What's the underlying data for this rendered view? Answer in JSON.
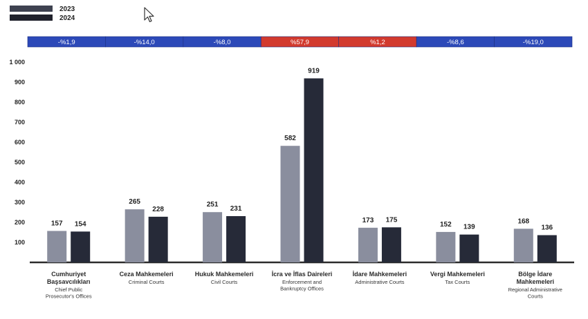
{
  "legend": [
    {
      "label": "2023",
      "color": "#3e4250"
    },
    {
      "label": "2024",
      "color": "#20222c"
    }
  ],
  "colors": {
    "bar_2023": "#8a8e9e",
    "bar_2024": "#262a38",
    "change_decrease": "#2c49b8",
    "change_increase": "#d23a2e",
    "axis_line": "#2b2b2b"
  },
  "cursor_icon": "mouse-pointer-icon",
  "chart_data": {
    "type": "bar",
    "ylim": [
      0,
      1000
    ],
    "yticks": [
      "1 000",
      "900",
      "800",
      "700",
      "600",
      "500",
      "400",
      "300",
      "200",
      "100"
    ],
    "ytick_values": [
      1000,
      900,
      800,
      700,
      600,
      500,
      400,
      300,
      200,
      100
    ],
    "grid": false,
    "categories": [
      {
        "tr": [
          "Cumhuriyet",
          "Başsavcılıkları"
        ],
        "en": [
          "Chief Public",
          "Prosecutor's Offices"
        ]
      },
      {
        "tr": [
          "Ceza Mahkemeleri"
        ],
        "en": [
          "Criminal Courts"
        ]
      },
      {
        "tr": [
          "Hukuk Mahkemeleri"
        ],
        "en": [
          "Civil Courts"
        ]
      },
      {
        "tr": [
          "İcra ve İflas Daireleri"
        ],
        "en": [
          "Enforcement and",
          "Bankruptcy Offices"
        ]
      },
      {
        "tr": [
          "İdare Mahkemeleri"
        ],
        "en": [
          "Administrative Courts"
        ]
      },
      {
        "tr": [
          "Vergi Mahkemeleri"
        ],
        "en": [
          "Tax Courts"
        ]
      },
      {
        "tr": [
          "Bölge İdare",
          "Mahkemeleri"
        ],
        "en": [
          "Regional Administrative",
          "Courts"
        ]
      }
    ],
    "series": [
      {
        "name": "2023",
        "values": [
          157,
          265,
          251,
          582,
          173,
          152,
          168
        ]
      },
      {
        "name": "2024",
        "values": [
          154,
          228,
          231,
          919,
          175,
          139,
          136
        ]
      }
    ],
    "change": [
      {
        "label": "-%1,9",
        "direction": "decrease"
      },
      {
        "label": "-%14,0",
        "direction": "decrease"
      },
      {
        "label": "-%8,0",
        "direction": "decrease"
      },
      {
        "label": "%57,9",
        "direction": "increase"
      },
      {
        "label": "%1,2",
        "direction": "increase"
      },
      {
        "label": "-%8,6",
        "direction": "decrease"
      },
      {
        "label": "-%19,0",
        "direction": "decrease"
      }
    ]
  }
}
